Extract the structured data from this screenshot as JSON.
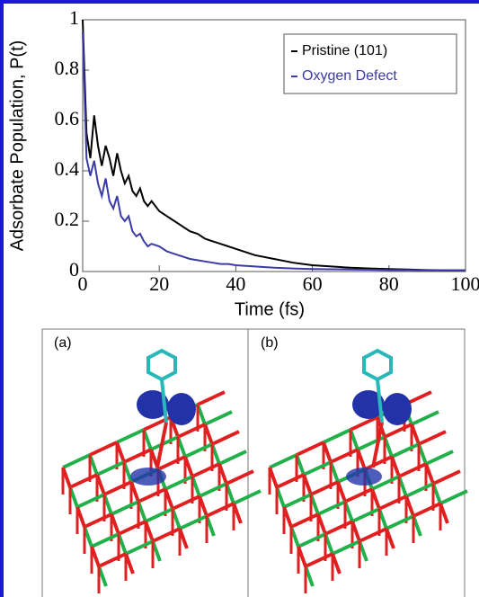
{
  "chart_data": {
    "type": "line",
    "xlabel": "Time (fs)",
    "ylabel": "Adsorbate Population, P(t)",
    "x": [
      0,
      1,
      2,
      3,
      4,
      5,
      6,
      7,
      8,
      9,
      10,
      11,
      12,
      13,
      14,
      15,
      16,
      17,
      18,
      20,
      22,
      24,
      26,
      28,
      30,
      32,
      34,
      36,
      38,
      40,
      45,
      50,
      55,
      60,
      65,
      70,
      75,
      80,
      85,
      90,
      95,
      100
    ],
    "series": [
      {
        "name": "Pristine (101)",
        "color": "#000000",
        "values": [
          1,
          0.55,
          0.45,
          0.62,
          0.5,
          0.42,
          0.5,
          0.45,
          0.38,
          0.47,
          0.4,
          0.35,
          0.38,
          0.32,
          0.3,
          0.33,
          0.28,
          0.26,
          0.28,
          0.24,
          0.22,
          0.2,
          0.18,
          0.16,
          0.15,
          0.13,
          0.12,
          0.11,
          0.1,
          0.09,
          0.065,
          0.05,
          0.035,
          0.025,
          0.02,
          0.015,
          0.012,
          0.01,
          0.008,
          0.006,
          0.005,
          0.005
        ]
      },
      {
        "name": "Oxygen Defect",
        "color": "#3b3ba8",
        "values": [
          0.95,
          0.45,
          0.38,
          0.44,
          0.35,
          0.3,
          0.37,
          0.28,
          0.25,
          0.3,
          0.22,
          0.2,
          0.22,
          0.16,
          0.14,
          0.15,
          0.12,
          0.1,
          0.11,
          0.1,
          0.08,
          0.07,
          0.06,
          0.05,
          0.045,
          0.04,
          0.035,
          0.03,
          0.03,
          0.025,
          0.02,
          0.015,
          0.012,
          0.01,
          0.009,
          0.008,
          0.007,
          0.006,
          0.006,
          0.005,
          0.005,
          0.005
        ]
      }
    ],
    "xlim": [
      0,
      100
    ],
    "xticks": [
      0,
      20,
      40,
      60,
      80,
      100
    ],
    "ylim": [
      0,
      1
    ],
    "yticks": [
      0,
      0.2,
      0.4,
      0.6,
      0.8,
      1
    ],
    "legend": "upper right"
  },
  "panels": [
    {
      "label": "(a)"
    },
    {
      "label": "(b)"
    }
  ]
}
